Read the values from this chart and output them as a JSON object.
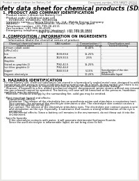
{
  "bg_color": "#e8e8e4",
  "page_bg": "#ffffff",
  "header_left": "Product name: Lithium Ion Battery Cell",
  "header_right_line1": "Document number: SDS-SANYO-2009-E",
  "header_right_line2": "Established / Revision: Dec.7.2009",
  "title": "Safety data sheet for chemical products (SDS)",
  "section1_title": "1. PRODUCT AND COMPANY IDENTIFICATION",
  "section1_lines": [
    "  · Product name: Lithium Ion Battery Cell",
    "  · Product code: Cylindrical-type cell",
    "       SV18650U, SV18650U, SV18650A",
    "  · Company name:     Sanyo Electric Co., Ltd., Mobile Energy Company",
    "  · Address:          2001 Kamikamachi, Sumoto-City, Hyogo, Japan",
    "  · Telephone number: +81-799-26-4111",
    "  · Fax number: +81-799-26-4120",
    "  · Emergency telephone number (daytime): +81-799-26-3662",
    "                                        (Night and holiday): +81-799-26-4101"
  ],
  "section2_title": "2. COMPOSITION / INFORMATION ON INGREDIENTS",
  "section2_intro": "  · Substance or preparation: Preparation",
  "section2_sub": "    · Information about the chemical nature of product:",
  "table_col_headers": [
    "Chemical chemical name /",
    "CAS number",
    "Concentration /",
    "Classification and"
  ],
  "table_col_headers2": [
    "Generic name",
    "",
    "Concentration range",
    "hazard labeling"
  ],
  "table_rows": [
    [
      "Lithium cobalt oxide",
      "-",
      "30-40%",
      ""
    ],
    [
      "(LiMn₂CoO₄)",
      "",
      "",
      ""
    ],
    [
      "Iron",
      "7439-89-6",
      "15-25%",
      "-"
    ],
    [
      "Aluminum",
      "7429-90-5",
      "2-5%",
      "-"
    ],
    [
      "Graphite",
      "",
      "",
      ""
    ],
    [
      "(listed as graphite-1)",
      "7782-42-5",
      "15-25%",
      ""
    ],
    [
      "(air filtro graphite-1)",
      "7782-44-0",
      "",
      "-"
    ],
    [
      "Copper",
      "7440-50-8",
      "5-15%",
      "Sensitization of the skin\ngroup No.2"
    ],
    [
      "Organic electrolyte",
      "-",
      "10-20%",
      "Inflammable liquid"
    ]
  ],
  "section3_title": "3. HAZARDS IDENTIFICATION",
  "section3_text": [
    "  For the battery cell, chemical substances are stored in a hermetically sealed metal case, designed to withstand",
    "  temperature and pressure-stress conditions during normal use. As a result, during normal use, there is no",
    "  physical danger of ignition or explosion and thus no danger of hazardous materials leakage.",
    "    However, if exposed to a fire, added mechanical shocks, decomposed, winter storms without any misuse,",
    "  the gas released cannot be operated. The battery cell case will be breached at the pressure, hazardous",
    "  materials may be released.",
    "    Moreover, if heated strongly by the surrounding fire, solid gas may be emitted.",
    "",
    "  · Most important hazard and effects:",
    "      Human health effects:",
    "        Inhalation: The release of the electrolyte has an anesthesia action and stimulates a respiratory tract.",
    "        Skin contact: The release of the electrolyte stimulates a skin. The electrolyte skin contact causes a",
    "        sore and stimulation on the skin.",
    "        Eye contact: The release of the electrolyte stimulates eyes. The electrolyte eye contact causes a sore",
    "        and stimulation on the eye. Especially, a substance that causes a strong inflammation of the eye is",
    "        contained.",
    "        Environmental effects: Since a battery cell remains in the environment, do not throw out it into the",
    "        environment.",
    "",
    "  · Specific hazards:",
    "        If the electrolyte contacts with water, it will generate detrimental hydrogen fluoride.",
    "        Since the used electrolyte is inflammable liquid, do not bring close to fire."
  ]
}
